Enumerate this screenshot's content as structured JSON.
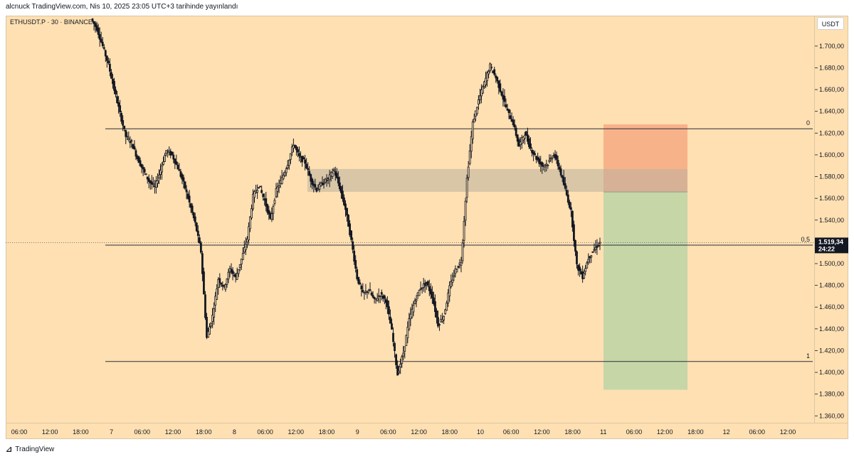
{
  "header": {
    "text": "alcnuck TradingView.com, Nis 10, 2025 23:05 UTC+3 tarihinde yayınlandı"
  },
  "symbol": {
    "text": "ETHUSDT.P · 30 · BINANCE"
  },
  "currency_button": "USDT",
  "footer": {
    "brand": "TradingView"
  },
  "colors": {
    "background": "#ffe0b2",
    "candle": "#131722",
    "stop_zone": "#f7a982",
    "profit_zone": "#bcd3a5",
    "supply_zone": "#b9b09f",
    "price_tag": "#131722"
  },
  "chart_data": {
    "type": "candlestick",
    "y_axis": {
      "range": [
        1353,
        1728
      ],
      "ticks": [
        1700,
        1680,
        1660,
        1640,
        1620,
        1600,
        1580,
        1560,
        1540,
        1520,
        1500,
        1480,
        1460,
        1440,
        1420,
        1400,
        1380,
        1360
      ],
      "tick_labels": [
        "1.700,00",
        "1.680,00",
        "1.660,00",
        "1.640,00",
        "1.620,00",
        "1.600,00",
        "1.580,00",
        "1.560,00",
        "1.540,00",
        "1.520,00",
        "1.500,00",
        "1.480,00",
        "1.460,00",
        "1.440,00",
        "1.420,00",
        "1.400,00",
        "1.380,00",
        "1.360,00"
      ]
    },
    "x_axis": {
      "tick_labels": [
        "06:00",
        "12:00",
        "18:00",
        "7",
        "06:00",
        "12:00",
        "18:00",
        "8",
        "06:00",
        "12:00",
        "18:00",
        "9",
        "06:00",
        "12:00",
        "18:00",
        "10",
        "06:00",
        "12:00",
        "18:00",
        "11",
        "06:00",
        "12:00",
        "18:00",
        "12",
        "06:00",
        "12:00"
      ]
    },
    "current_price": {
      "value": 1519.34,
      "label": "1.519,34",
      "countdown": "24:22"
    },
    "fib_levels": [
      {
        "label": "0",
        "value": 1624
      },
      {
        "label": "0,5",
        "value": 1517
      },
      {
        "label": "1",
        "value": 1410
      }
    ],
    "zones": {
      "supply": {
        "top": 1587,
        "bottom": 1566
      },
      "stop": {
        "top": 1628,
        "bottom": 1566
      },
      "target": {
        "top": 1566,
        "bottom": 1384
      }
    },
    "candle_path": [
      [
        0,
        1725
      ],
      [
        1,
        1716
      ],
      [
        2,
        1700
      ],
      [
        3,
        1683
      ],
      [
        4,
        1660
      ],
      [
        5,
        1638
      ],
      [
        6,
        1617
      ],
      [
        7,
        1611
      ],
      [
        8,
        1597
      ],
      [
        9,
        1586
      ],
      [
        10,
        1576
      ],
      [
        11,
        1570
      ],
      [
        12,
        1586
      ],
      [
        13,
        1604
      ],
      [
        14,
        1600
      ],
      [
        15,
        1588
      ],
      [
        16,
        1574
      ],
      [
        17,
        1556
      ],
      [
        18,
        1537
      ],
      [
        19,
        1511
      ],
      [
        20,
        1432
      ],
      [
        21,
        1452
      ],
      [
        22,
        1486
      ],
      [
        23,
        1478
      ],
      [
        24,
        1495
      ],
      [
        25,
        1487
      ],
      [
        26,
        1504
      ],
      [
        27,
        1523
      ],
      [
        28,
        1562
      ],
      [
        29,
        1572
      ],
      [
        30,
        1558
      ],
      [
        31,
        1540
      ],
      [
        32,
        1567
      ],
      [
        33,
        1578
      ],
      [
        34,
        1592
      ],
      [
        35,
        1610
      ],
      [
        36,
        1598
      ],
      [
        37,
        1593
      ],
      [
        38,
        1577
      ],
      [
        39,
        1568
      ],
      [
        40,
        1574
      ],
      [
        41,
        1578
      ],
      [
        42,
        1586
      ],
      [
        43,
        1570
      ],
      [
        44,
        1550
      ],
      [
        45,
        1521
      ],
      [
        46,
        1487
      ],
      [
        47,
        1472
      ],
      [
        48,
        1476
      ],
      [
        49,
        1466
      ],
      [
        50,
        1472
      ],
      [
        51,
        1466
      ],
      [
        52,
        1438
      ],
      [
        53,
        1398
      ],
      [
        54,
        1418
      ],
      [
        55,
        1448
      ],
      [
        56,
        1466
      ],
      [
        57,
        1478
      ],
      [
        58,
        1482
      ],
      [
        59,
        1470
      ],
      [
        60,
        1444
      ],
      [
        61,
        1452
      ],
      [
        62,
        1478
      ],
      [
        63,
        1494
      ],
      [
        64,
        1502
      ],
      [
        65,
        1578
      ],
      [
        66,
        1629
      ],
      [
        67,
        1650
      ],
      [
        68,
        1666
      ],
      [
        69,
        1682
      ],
      [
        70,
        1671
      ],
      [
        71,
        1656
      ],
      [
        72,
        1640
      ],
      [
        73,
        1629
      ],
      [
        74,
        1608
      ],
      [
        75,
        1620
      ],
      [
        76,
        1606
      ],
      [
        77,
        1597
      ],
      [
        78,
        1590
      ],
      [
        79,
        1592
      ],
      [
        80,
        1601
      ],
      [
        81,
        1587
      ],
      [
        82,
        1568
      ],
      [
        83,
        1548
      ],
      [
        84,
        1498
      ],
      [
        85,
        1488
      ],
      [
        86,
        1505
      ],
      [
        87,
        1513
      ],
      [
        88,
        1519.34
      ]
    ]
  }
}
